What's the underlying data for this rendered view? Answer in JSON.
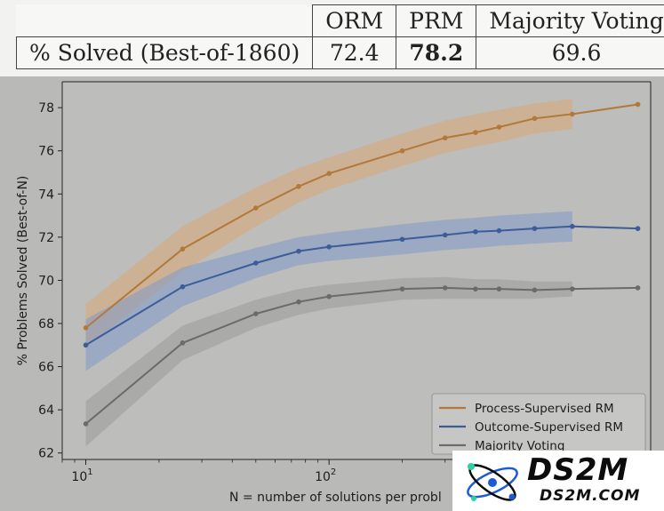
{
  "table": {
    "headers": [
      "ORM",
      "PRM",
      "Majority Voting"
    ],
    "row_label": "% Solved (Best-of-1860)",
    "values": [
      "72.4",
      "78.2",
      "69.6"
    ]
  },
  "chart_data": {
    "type": "line",
    "xlabel": "N = number of solutions per probl",
    "ylabel": "% Problems Solved (Best-of-N)",
    "x_scale": "log",
    "xlim": [
      8,
      2100
    ],
    "ylim": [
      61.7,
      79.2
    ],
    "x_ticks": [
      10,
      100
    ],
    "x_tick_labels": [
      "10^1",
      "10^2"
    ],
    "y_ticks": [
      62,
      64,
      66,
      68,
      70,
      72,
      74,
      76,
      78
    ],
    "grid": false,
    "legend_position": "bottom-right",
    "x": [
      10,
      25,
      50,
      75,
      100,
      200,
      300,
      400,
      500,
      700,
      1000,
      1860
    ],
    "series": [
      {
        "name": "Process-Supervised RM",
        "color": "#b2793a",
        "band_color": "#d8a874",
        "values": [
          67.8,
          71.45,
          73.35,
          74.35,
          74.95,
          76.0,
          76.6,
          76.85,
          77.1,
          77.5,
          77.7,
          78.15
        ],
        "lower": [
          66.9,
          70.4,
          72.5,
          73.6,
          74.2,
          75.3,
          75.9,
          76.2,
          76.4,
          76.8,
          77.0
        ],
        "upper": [
          68.9,
          72.5,
          74.3,
          75.2,
          75.7,
          76.8,
          77.4,
          77.7,
          77.9,
          78.2,
          78.4
        ]
      },
      {
        "name": "Outcome-Supervised RM",
        "color": "#3c5c9a",
        "band_color": "#7f9bc8",
        "values": [
          67.0,
          69.7,
          70.8,
          71.35,
          71.55,
          71.9,
          72.1,
          72.25,
          72.3,
          72.4,
          72.5,
          72.4
        ],
        "lower": [
          65.8,
          68.8,
          70.1,
          70.7,
          70.9,
          71.2,
          71.4,
          71.5,
          71.6,
          71.7,
          71.8
        ],
        "upper": [
          68.2,
          70.6,
          71.5,
          72.0,
          72.2,
          72.6,
          72.8,
          72.9,
          73.0,
          73.1,
          73.2
        ]
      },
      {
        "name": "Majority Voting",
        "color": "#6b6b6b",
        "band_color": "#9a9a9a",
        "values": [
          63.35,
          67.1,
          68.45,
          69.0,
          69.25,
          69.6,
          69.65,
          69.6,
          69.6,
          69.55,
          69.6,
          69.65
        ],
        "lower": [
          62.3,
          66.3,
          67.8,
          68.4,
          68.7,
          69.1,
          69.15,
          69.15,
          69.15,
          69.15,
          69.25
        ],
        "upper": [
          64.4,
          67.9,
          69.1,
          69.6,
          69.8,
          70.1,
          70.15,
          70.05,
          70.05,
          69.95,
          69.95
        ]
      }
    ]
  },
  "watermark": {
    "title": "DS2M",
    "url": "DS2M.COM"
  }
}
